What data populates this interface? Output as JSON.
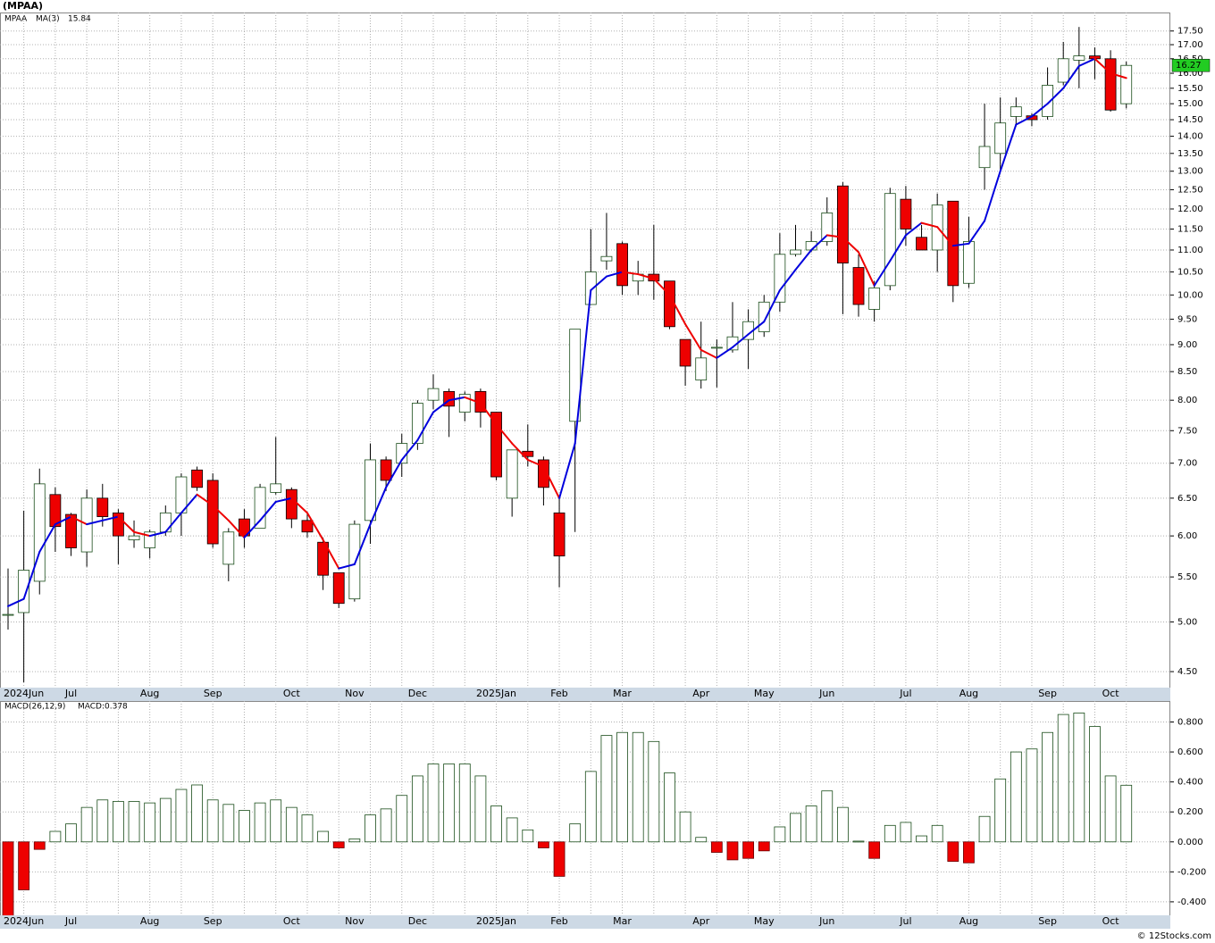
{
  "chart_data": [
    {
      "type": "candlestick",
      "title": "(MPAA)",
      "symbol": "MPAA",
      "log_scale": true,
      "grid": true,
      "up_color": "#ffffff",
      "up_stroke": "#1a4d1a",
      "down_color": "#ee0000",
      "last_color": "#22cc22",
      "categories": [
        null,
        "2024Jun",
        null,
        null,
        "Jul",
        null,
        null,
        null,
        null,
        "Aug",
        null,
        null,
        null,
        "Sep",
        null,
        null,
        null,
        null,
        "Oct",
        null,
        null,
        null,
        "Nov",
        null,
        null,
        null,
        "Dec",
        null,
        null,
        null,
        null,
        "2025Jan",
        null,
        null,
        null,
        "Feb",
        null,
        null,
        null,
        "Mar",
        null,
        null,
        null,
        null,
        "Apr",
        null,
        null,
        null,
        "May",
        null,
        null,
        null,
        "Jun",
        null,
        null,
        null,
        null,
        "Jul",
        null,
        null,
        null,
        "Aug",
        null,
        null,
        null,
        null,
        "Sep",
        null,
        null,
        null,
        "Oct",
        null
      ],
      "open": [
        5.08,
        5.1,
        5.45,
        6.55,
        6.28,
        5.8,
        6.5,
        6.3,
        5.95,
        5.85,
        6.05,
        6.3,
        6.9,
        6.75,
        5.65,
        6.22,
        6.1,
        6.58,
        6.62,
        6.2,
        5.92,
        5.55,
        5.25,
        6.2,
        7.05,
        7.0,
        7.3,
        8.0,
        8.15,
        7.8,
        8.15,
        7.8,
        6.5,
        7.18,
        7.05,
        6.3,
        7.65,
        9.8,
        10.75,
        11.15,
        10.3,
        10.45,
        10.3,
        9.1,
        8.35,
        8.95,
        8.9,
        9.1,
        9.25,
        9.85,
        10.9,
        11.0,
        11.2,
        12.6,
        10.6,
        9.7,
        10.2,
        12.25,
        11.3,
        11.0,
        12.2,
        10.25,
        13.1,
        13.5,
        14.6,
        14.62,
        14.6,
        15.7,
        16.45,
        16.6,
        16.5,
        15.0
      ],
      "high": [
        5.6,
        6.33,
        6.92,
        6.65,
        6.3,
        6.62,
        6.7,
        6.35,
        6.2,
        6.08,
        6.4,
        6.85,
        6.95,
        6.85,
        6.1,
        6.35,
        6.7,
        7.4,
        6.65,
        6.3,
        5.98,
        5.55,
        6.2,
        7.3,
        7.1,
        7.45,
        8.0,
        8.45,
        8.2,
        8.15,
        8.2,
        7.8,
        7.2,
        7.6,
        7.1,
        6.5,
        9.3,
        11.5,
        11.9,
        11.2,
        10.75,
        11.6,
        10.3,
        9.1,
        9.45,
        9.1,
        9.85,
        9.7,
        10.0,
        11.4,
        11.6,
        11.45,
        12.3,
        12.7,
        10.9,
        10.3,
        12.55,
        12.6,
        11.6,
        12.4,
        12.2,
        11.8,
        15.0,
        15.2,
        15.2,
        14.7,
        16.2,
        17.1,
        17.65,
        16.9,
        16.8,
        16.4
      ],
      "low": [
        4.92,
        4.4,
        5.3,
        5.8,
        5.75,
        5.62,
        6.12,
        5.65,
        5.85,
        5.72,
        6.0,
        6.0,
        6.6,
        5.85,
        5.45,
        5.85,
        6.1,
        6.55,
        6.1,
        5.98,
        5.35,
        5.15,
        5.22,
        5.9,
        6.6,
        6.8,
        7.2,
        7.85,
        7.4,
        7.65,
        7.55,
        6.75,
        6.25,
        6.95,
        6.4,
        5.38,
        6.05,
        9.8,
        10.55,
        10.0,
        10.0,
        9.9,
        9.3,
        8.25,
        8.2,
        8.22,
        8.85,
        8.55,
        9.15,
        9.65,
        10.85,
        10.95,
        11.1,
        9.6,
        9.55,
        9.45,
        10.1,
        11.1,
        11.0,
        10.5,
        9.85,
        10.15,
        12.5,
        13.0,
        14.3,
        14.3,
        14.5,
        15.6,
        15.5,
        15.8,
        14.75,
        14.85
      ],
      "close": [
        5.08,
        5.58,
        6.7,
        6.12,
        5.85,
        6.5,
        6.25,
        6.0,
        6.0,
        6.05,
        6.3,
        6.8,
        6.65,
        5.9,
        6.05,
        6.0,
        6.65,
        6.7,
        6.22,
        6.05,
        5.52,
        5.2,
        6.15,
        7.05,
        6.75,
        7.3,
        7.95,
        8.2,
        7.9,
        8.1,
        7.8,
        6.8,
        7.2,
        7.1,
        6.65,
        5.75,
        9.3,
        10.5,
        10.85,
        10.2,
        10.45,
        10.3,
        9.35,
        8.6,
        8.75,
        8.95,
        9.15,
        9.45,
        9.85,
        10.9,
        11.0,
        11.2,
        11.9,
        10.7,
        9.8,
        10.15,
        12.4,
        11.5,
        11.0,
        12.1,
        10.2,
        11.2,
        13.7,
        14.4,
        14.9,
        14.5,
        15.6,
        16.5,
        16.6,
        16.5,
        14.8,
        16.27
      ],
      "ma": {
        "name": "MA(3)",
        "up_color": "#0000dd",
        "down_color": "#ee0000",
        "values": [
          5.17,
          5.25,
          5.8,
          6.15,
          6.25,
          6.15,
          6.2,
          6.25,
          6.05,
          6.0,
          6.05,
          6.3,
          6.55,
          6.4,
          6.2,
          5.98,
          6.2,
          6.45,
          6.5,
          6.3,
          5.95,
          5.6,
          5.65,
          6.15,
          6.65,
          7.05,
          7.35,
          7.8,
          8.0,
          8.05,
          7.95,
          7.6,
          7.3,
          7.05,
          6.95,
          6.5,
          7.3,
          10.1,
          10.4,
          10.5,
          10.45,
          10.35,
          10.0,
          9.4,
          8.9,
          8.75,
          8.95,
          9.2,
          9.45,
          10.1,
          10.55,
          11.0,
          11.35,
          11.3,
          10.95,
          10.2,
          10.75,
          11.35,
          11.65,
          11.55,
          11.1,
          11.15,
          11.7,
          13.0,
          14.35,
          14.6,
          15.0,
          15.5,
          16.25,
          16.5,
          16.0,
          15.84
        ]
      },
      "ylim": [
        4.35,
        18.2
      ],
      "yticks": [
        {
          "value": 4.5,
          "label": "4.50"
        },
        {
          "value": 5,
          "label": "5.00"
        },
        {
          "value": 5.5,
          "label": "5.50"
        },
        {
          "value": 6,
          "label": "6.00"
        },
        {
          "value": 6.5,
          "label": "6.50"
        },
        {
          "value": 7,
          "label": "7.00"
        },
        {
          "value": 7.5,
          "label": "7.50"
        },
        {
          "value": 8,
          "label": "8.00"
        },
        {
          "value": 8.5,
          "label": "8.50"
        },
        {
          "value": 9,
          "label": "9.00"
        },
        {
          "value": 9.5,
          "label": "9.50"
        },
        {
          "value": 10,
          "label": "10.00"
        },
        {
          "value": 10.5,
          "label": "10.50"
        },
        {
          "value": 11,
          "label": "11.00"
        },
        {
          "value": 11.5,
          "label": "11.50"
        },
        {
          "value": 12,
          "label": "12.00"
        },
        {
          "value": 12.5,
          "label": "12.50"
        },
        {
          "value": 13,
          "label": "13.00"
        },
        {
          "value": 13.5,
          "label": "13.50"
        },
        {
          "value": 14,
          "label": "14.00"
        },
        {
          "value": 14.5,
          "label": "14.50"
        },
        {
          "value": 15,
          "label": "15.00"
        },
        {
          "value": 15.5,
          "label": "15.50"
        },
        {
          "value": 16,
          "label": "16.00"
        },
        {
          "value": 16.5,
          "label": "16.50"
        },
        {
          "value": 17,
          "label": "17.00"
        },
        {
          "value": 17.5,
          "label": "17.50"
        }
      ]
    },
    {
      "type": "bar",
      "legend": "MACD(26,12,9)",
      "value_legend": "MACD:0.378",
      "grid": true,
      "up_color": "#ffffff",
      "up_stroke": "#1a4d1a",
      "down_color": "#ee0000",
      "categories": [
        null,
        "2024Jun",
        null,
        null,
        "Jul",
        null,
        null,
        null,
        null,
        "Aug",
        null,
        null,
        null,
        "Sep",
        null,
        null,
        null,
        null,
        "Oct",
        null,
        null,
        null,
        "Nov",
        null,
        null,
        null,
        "Dec",
        null,
        null,
        null,
        null,
        "2025Jan",
        null,
        null,
        null,
        "Feb",
        null,
        null,
        null,
        "Mar",
        null,
        null,
        null,
        null,
        "Apr",
        null,
        null,
        null,
        "May",
        null,
        null,
        null,
        "Jun",
        null,
        null,
        null,
        null,
        "Jul",
        null,
        null,
        null,
        "Aug",
        null,
        null,
        null,
        null,
        "Sep",
        null,
        null,
        null,
        "Oct",
        null
      ],
      "values": [
        -0.5,
        -0.32,
        -0.05,
        0.07,
        0.12,
        0.23,
        0.28,
        0.27,
        0.27,
        0.26,
        0.29,
        0.35,
        0.38,
        0.28,
        0.25,
        0.21,
        0.26,
        0.28,
        0.23,
        0.18,
        0.07,
        -0.04,
        0.02,
        0.18,
        0.22,
        0.31,
        0.44,
        0.52,
        0.52,
        0.52,
        0.44,
        0.24,
        0.16,
        0.08,
        -0.04,
        -0.23,
        0.12,
        0.47,
        0.71,
        0.73,
        0.73,
        0.67,
        0.46,
        0.2,
        0.03,
        -0.07,
        -0.12,
        -0.11,
        -0.06,
        0.1,
        0.19,
        0.24,
        0.34,
        0.23,
        0.005,
        -0.11,
        0.11,
        0.13,
        0.04,
        0.11,
        -0.13,
        -0.14,
        0.17,
        0.42,
        0.6,
        0.62,
        0.73,
        0.85,
        0.86,
        0.77,
        0.44,
        0.378
      ],
      "ylim": [
        -0.49,
        0.94
      ],
      "yticks": [
        {
          "value": -0.4,
          "label": "-0.400"
        },
        {
          "value": -0.2,
          "label": "-0.200"
        },
        {
          "value": 0,
          "label": "0.000"
        },
        {
          "value": 0.2,
          "label": "0.200"
        },
        {
          "value": 0.4,
          "label": "0.400"
        },
        {
          "value": 0.6,
          "label": "0.600"
        },
        {
          "value": 0.8,
          "label": "0.800"
        }
      ]
    }
  ],
  "footer": "© 12Stocks.com"
}
